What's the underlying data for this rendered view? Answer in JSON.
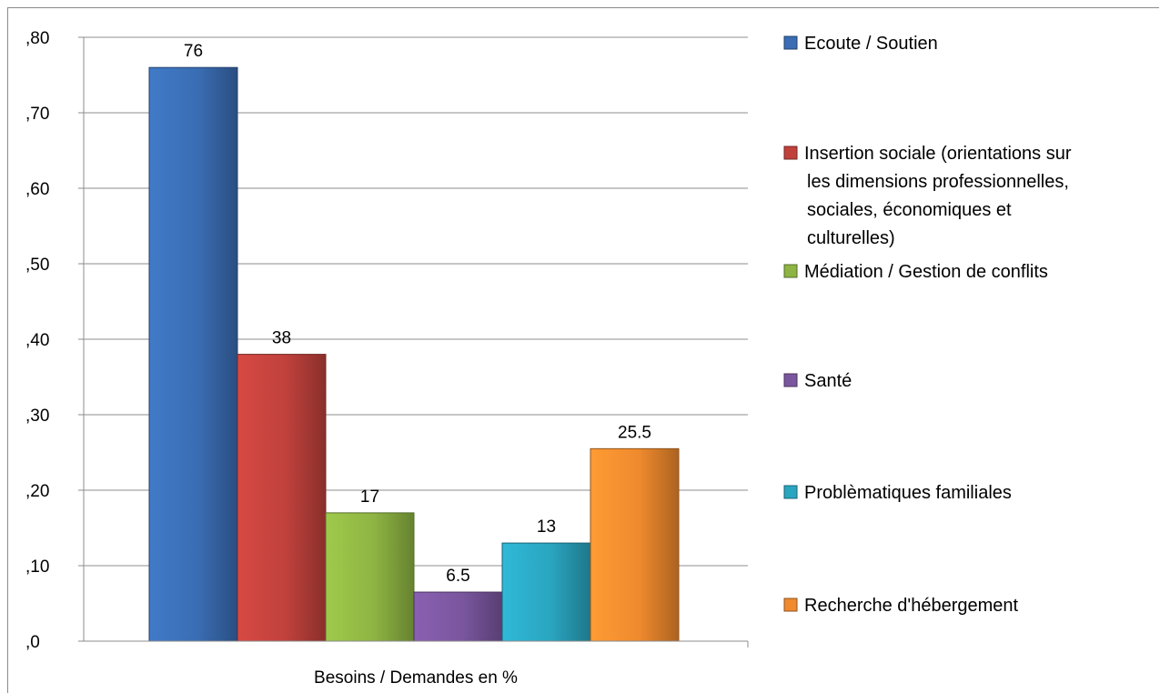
{
  "chart_data": {
    "type": "bar",
    "xlabel": "Besoins / Demandes en %",
    "categories": [
      "Besoins / Demandes en %"
    ],
    "ylim": [
      0,
      80
    ],
    "y_ticks": [
      0,
      10,
      20,
      30,
      40,
      50,
      60,
      70,
      80
    ],
    "y_tick_labels": [
      ",0",
      ",10",
      ",20",
      ",30",
      ",40",
      ",50",
      ",60",
      ",70",
      ",80"
    ],
    "grid": true,
    "legend_position": "right",
    "series": [
      {
        "name": "Ecoute / Soutien",
        "values": [
          76
        ],
        "data_label": "76",
        "color": "#3a6db3"
      },
      {
        "name": "Insertion sociale   (orientations sur les dimensions professionnelles, sociales, économiques et culturelles)",
        "legend_lines": [
          "Insertion sociale   (orientations sur",
          "les dimensions professionnelles,",
          "sociales, économiques et",
          "culturelles)"
        ],
        "values": [
          38
        ],
        "data_label": "38",
        "color": "#c0413c"
      },
      {
        "name": "Médiation / Gestion de conflits",
        "values": [
          17
        ],
        "data_label": "17",
        "color": "#8eb443"
      },
      {
        "name": "Santé",
        "values": [
          6.5
        ],
        "data_label": "6.5",
        "color": "#7a569e"
      },
      {
        "name": "Problèmatiques familiales",
        "values": [
          13
        ],
        "data_label": "13",
        "color": "#2aa5c0"
      },
      {
        "name": "Recherche d'hébergement",
        "values": [
          25.5
        ],
        "data_label": "25.5",
        "color": "#ef8a2e"
      }
    ]
  }
}
